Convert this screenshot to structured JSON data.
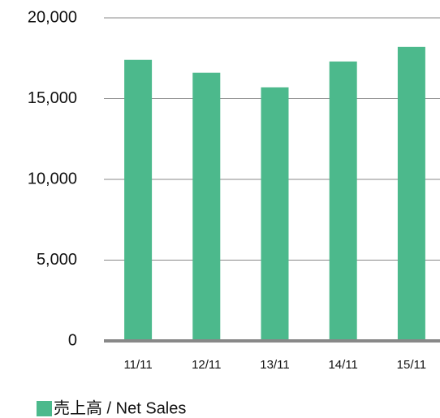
{
  "chart_data": {
    "type": "bar",
    "categories": [
      "11/11",
      "12/11",
      "13/11",
      "14/11",
      "15/11"
    ],
    "series": [
      {
        "name": "売上高 / Net Sales",
        "color": "#4cb98c",
        "values": [
          17400,
          16600,
          15700,
          17300,
          18200
        ]
      }
    ],
    "ylim": [
      0,
      20000
    ],
    "yticks": [
      0,
      {
        "value": 5000,
        "label": "5,000"
      },
      {
        "value": 10000,
        "label": "10,000"
      },
      {
        "value": 15000,
        "label": "15,000"
      },
      {
        "value": 20000,
        "label": "20,000"
      }
    ],
    "grid": true,
    "legend": "bottom-left"
  }
}
